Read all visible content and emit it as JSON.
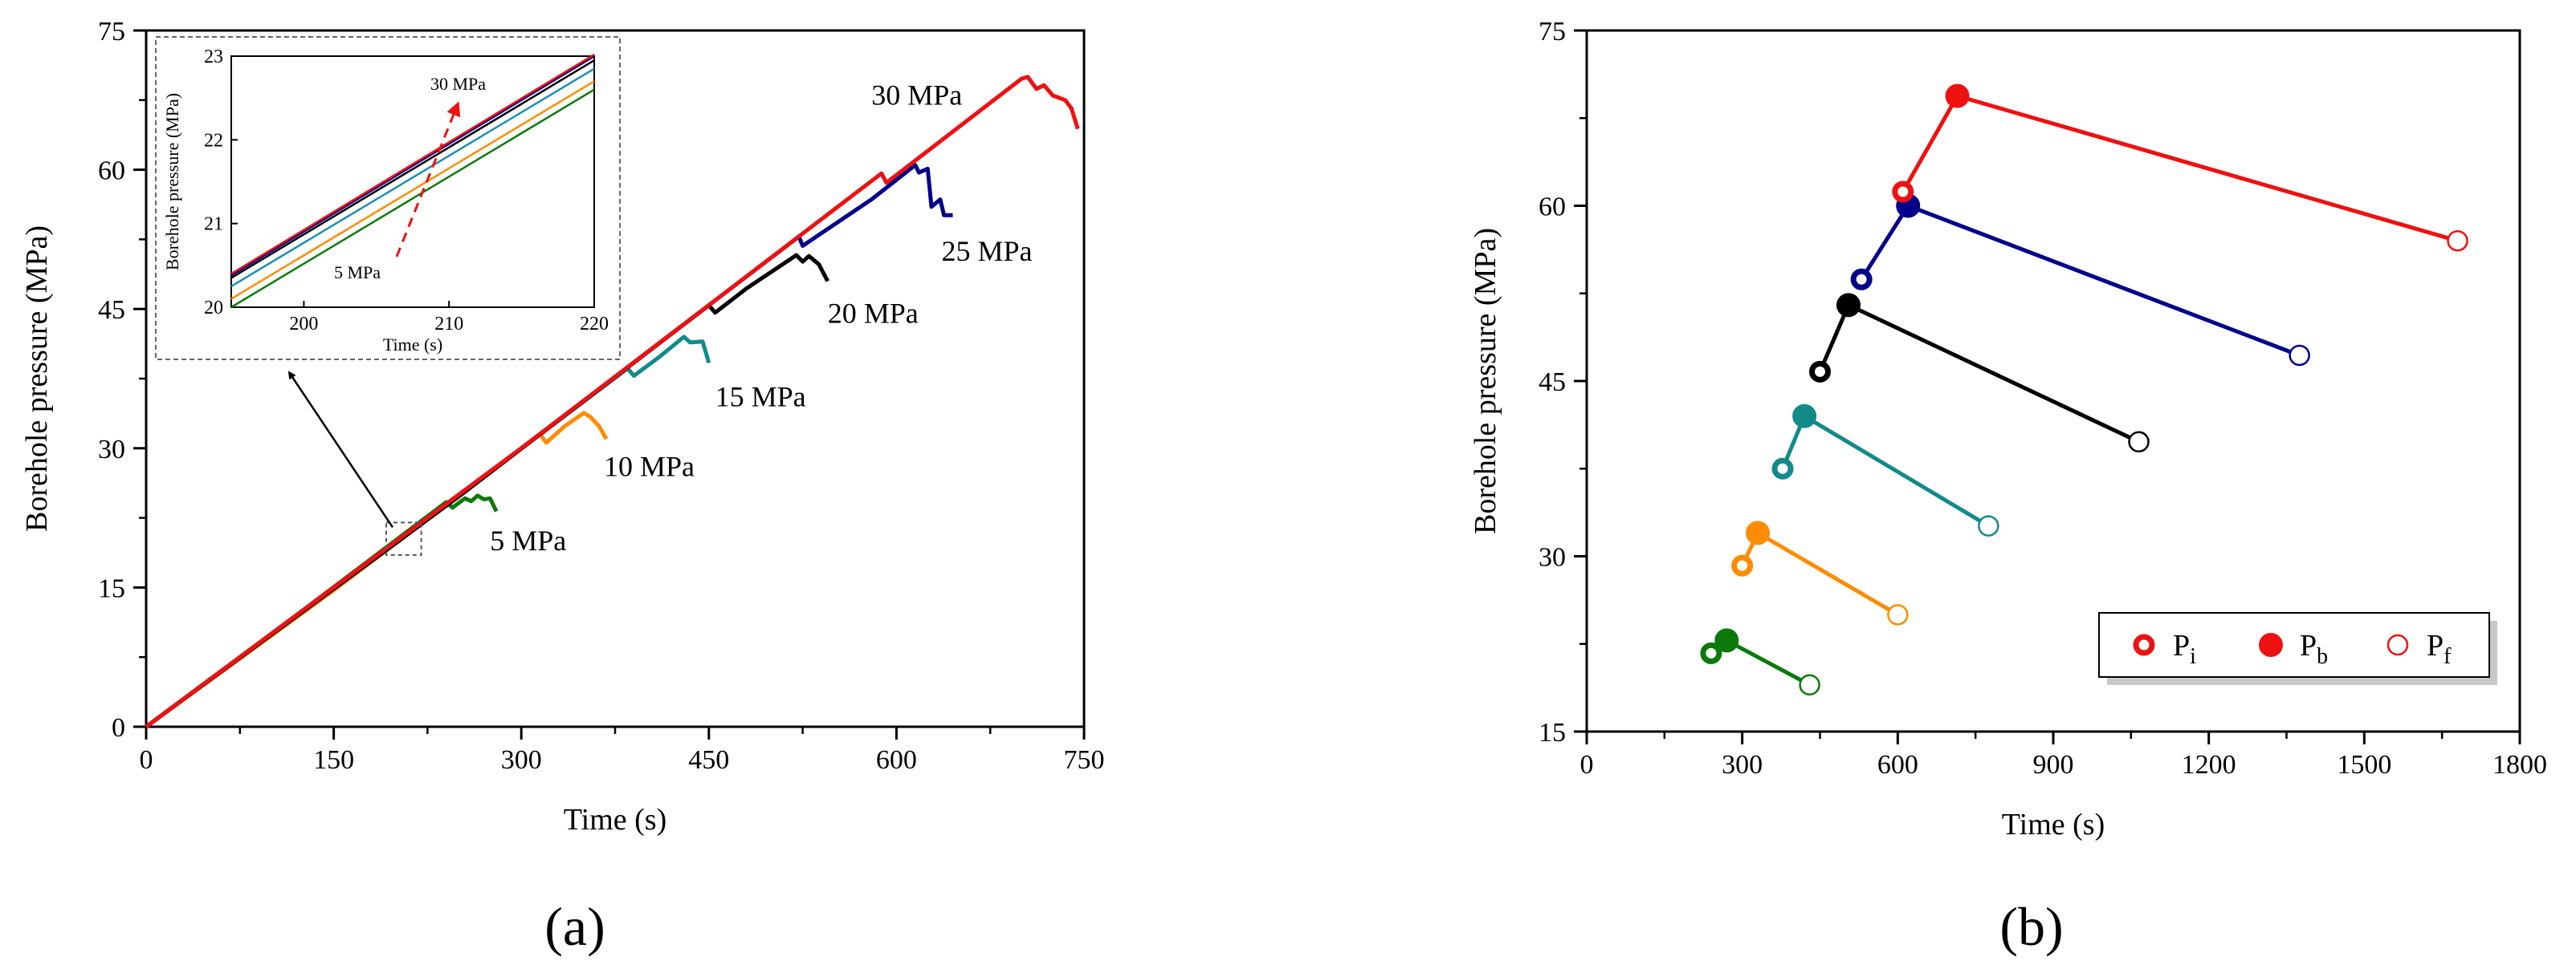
{
  "chart_data": [
    {
      "id": "a",
      "type": "line",
      "panel_label": "(a)",
      "xlabel": "Time (s)",
      "ylabel": "Borehole pressure (MPa)",
      "xlim": [
        0,
        750
      ],
      "ylim": [
        0,
        75
      ],
      "xticks": [
        0,
        150,
        300,
        450,
        600,
        750
      ],
      "yticks": [
        0,
        15,
        30,
        45,
        60,
        75
      ],
      "series": [
        {
          "name": "5 MPa",
          "color": "#0b7a0b",
          "x": [
            0,
            120,
            240,
            245,
            255,
            260,
            265,
            270,
            275,
            280
          ],
          "y": [
            0,
            12,
            24.2,
            23.6,
            24.6,
            24.3,
            24.9,
            24.5,
            24.6,
            23.2
          ]
        },
        {
          "name": "10 MPa",
          "color": "#ff8c00",
          "x": [
            0,
            150,
            315,
            320,
            335,
            350,
            355,
            362,
            368
          ],
          "y": [
            0,
            14.7,
            31.5,
            30.6,
            32.4,
            33.8,
            33.4,
            32.4,
            31.0
          ]
        },
        {
          "name": "15 MPa",
          "color": "#138a8a",
          "x": [
            0,
            200,
            385,
            390,
            410,
            430,
            435,
            445,
            450
          ],
          "y": [
            0,
            19.8,
            38.6,
            37.8,
            39.8,
            42.0,
            41.4,
            41.5,
            39.2
          ]
        },
        {
          "name": "20 MPa",
          "color": "#000000",
          "x": [
            0,
            250,
            450,
            455,
            480,
            520,
            525,
            530,
            538,
            545
          ],
          "y": [
            0,
            24.8,
            45.4,
            44.6,
            47.2,
            50.8,
            50.1,
            50.7,
            49.8,
            48.0
          ]
        },
        {
          "name": "25 MPa",
          "color": "#00008b",
          "x": [
            0,
            300,
            522,
            525,
            580,
            615,
            618,
            625,
            628,
            635,
            638,
            645
          ],
          "y": [
            0,
            30.0,
            52.8,
            51.8,
            56.8,
            60.5,
            59.7,
            60.1,
            56.0,
            56.8,
            55.1,
            55.1
          ]
        },
        {
          "name": "30 MPa",
          "color": "#ee1111",
          "x": [
            0,
            300,
            588,
            592,
            700,
            705,
            712,
            718,
            725,
            735,
            740,
            745
          ],
          "y": [
            0,
            30.0,
            59.6,
            58.6,
            69.8,
            70.0,
            68.7,
            69.1,
            68.0,
            67.5,
            66.6,
            64.4
          ]
        }
      ],
      "labels": [
        {
          "text": "5 MPa",
          "x": 275,
          "y": 19
        },
        {
          "text": "10 MPa",
          "x": 366,
          "y": 27
        },
        {
          "text": "15 MPa",
          "x": 455,
          "y": 34.5
        },
        {
          "text": "20 MPa",
          "x": 545,
          "y": 43.5
        },
        {
          "text": "25 MPa",
          "x": 636,
          "y": 50.2
        },
        {
          "text": "30 MPa",
          "x": 580,
          "y": 67
        }
      ],
      "inset": {
        "xlabel": "Time (s)",
        "ylabel": "Borehole pressure (MPa)",
        "xlim": [
          195,
          220
        ],
        "ylim": [
          20,
          23
        ],
        "xticks": [
          200,
          210,
          220
        ],
        "yticks": [
          20,
          21,
          22,
          23
        ],
        "label_top": "30 MPa",
        "label_bottom": "5 MPa",
        "series": [
          {
            "name": "5 MPa",
            "color": "#0b7a0b",
            "y_start": 20.0,
            "y_end": 22.6
          },
          {
            "name": "10 MPa",
            "color": "#ff8c00",
            "y_start": 20.1,
            "y_end": 22.7
          },
          {
            "name": "15 MPa",
            "color": "#1e90b0",
            "y_start": 20.25,
            "y_end": 22.85
          },
          {
            "name": "20 MPa",
            "color": "#000000",
            "y_start": 20.35,
            "y_end": 22.95
          },
          {
            "name": "25 MPa",
            "color": "#00008b",
            "y_start": 20.38,
            "y_end": 23.0
          },
          {
            "name": "30 MPa",
            "color": "#ee1111",
            "y_start": 20.4,
            "y_end": 23.02
          }
        ]
      }
    },
    {
      "id": "b",
      "type": "scatter",
      "panel_label": "(b)",
      "xlabel": "Time (s)",
      "ylabel": "Borehole pressure (MPa)",
      "xlim": [
        0,
        1800
      ],
      "ylim": [
        15,
        75
      ],
      "xticks": [
        0,
        300,
        600,
        900,
        1200,
        1500,
        1800
      ],
      "yticks": [
        15,
        30,
        45,
        60,
        75
      ],
      "legend": {
        "placement": "bottom-right",
        "entries": [
          "Pi",
          "Pb",
          "Pf"
        ],
        "base": [
          "P",
          "P",
          "P"
        ],
        "sub": [
          "i",
          "b",
          "f"
        ]
      },
      "series": [
        {
          "name": "5 MPa",
          "color": "#0b7a0b",
          "Pi": [
            240,
            21.7
          ],
          "Pb": [
            270,
            22.8
          ],
          "Pf": [
            430,
            19.0
          ]
        },
        {
          "name": "10 MPa",
          "color": "#ff8c00",
          "Pi": [
            300,
            29.2
          ],
          "Pb": [
            330,
            32.0
          ],
          "Pf": [
            600,
            25.0
          ]
        },
        {
          "name": "15 MPa",
          "color": "#138a8a",
          "Pi": [
            378,
            37.5
          ],
          "Pb": [
            420,
            42.0
          ],
          "Pf": [
            775,
            32.6
          ]
        },
        {
          "name": "20 MPa",
          "color": "#000000",
          "Pi": [
            450,
            45.8
          ],
          "Pb": [
            505,
            51.5
          ],
          "Pf": [
            1065,
            39.8
          ]
        },
        {
          "name": "25 MPa",
          "color": "#00008b",
          "Pi": [
            530,
            53.7
          ],
          "Pb": [
            620,
            60.0
          ],
          "Pf": [
            1375,
            47.2
          ]
        },
        {
          "name": "30 MPa",
          "color": "#ee1111",
          "Pi": [
            610,
            61.2
          ],
          "Pb": [
            715,
            69.4
          ],
          "Pf": [
            1680,
            57.0
          ]
        }
      ]
    }
  ]
}
